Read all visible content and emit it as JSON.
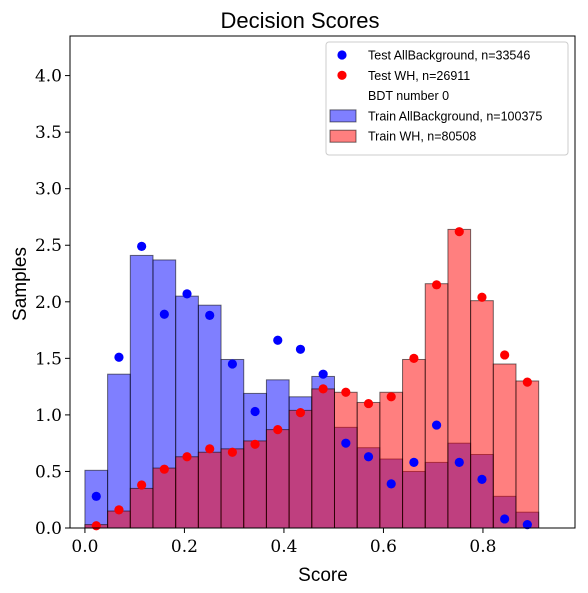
{
  "chart_data": {
    "type": "bar",
    "title": "Decision Scores",
    "xlabel": "Score",
    "ylabel": "Samples",
    "xlim": [
      -0.03,
      0.985
    ],
    "ylim": [
      0,
      4.35
    ],
    "xticks": [
      "0.0",
      "0.2",
      "0.4",
      "0.6",
      "0.8"
    ],
    "yticks": [
      "0.0",
      "0.5",
      "1.0",
      "1.5",
      "2.0",
      "2.5",
      "3.0",
      "3.5",
      "4.0"
    ],
    "bin_edges": [
      0.0,
      0.0456,
      0.0912,
      0.1368,
      0.1824,
      0.228,
      0.2736,
      0.3192,
      0.3648,
      0.4104,
      0.456,
      0.5016,
      0.5472,
      0.5928,
      0.6384,
      0.684,
      0.7296,
      0.7752,
      0.8208,
      0.8664,
      0.912
    ],
    "legend_position": "top-right",
    "series": [
      {
        "name": "Train AllBackground, n=100375",
        "kind": "histogram",
        "color": "#0000ff",
        "values": [
          0.51,
          1.36,
          2.41,
          2.37,
          2.05,
          1.97,
          1.49,
          1.19,
          1.31,
          1.16,
          1.34,
          0.89,
          0.71,
          0.61,
          0.5,
          0.58,
          0.75,
          0.65,
          0.28,
          0.14
        ]
      },
      {
        "name": "Train WH, n=80508",
        "kind": "histogram",
        "color": "#ff0000",
        "values": [
          0.03,
          0.15,
          0.35,
          0.53,
          0.63,
          0.67,
          0.7,
          0.77,
          0.87,
          1.04,
          1.23,
          1.2,
          1.11,
          1.2,
          1.49,
          2.16,
          2.64,
          2.01,
          1.45,
          1.3
        ]
      },
      {
        "name": "Test AllBackground, n=33546",
        "kind": "points",
        "color": "#0000ff",
        "values": [
          0.28,
          1.51,
          2.49,
          1.89,
          2.07,
          1.88,
          1.45,
          1.03,
          1.66,
          1.58,
          1.36,
          0.75,
          0.63,
          0.39,
          0.58,
          0.91,
          0.58,
          0.43,
          0.08,
          0.03
        ]
      },
      {
        "name": "Test WH, n=26911",
        "kind": "points",
        "color": "#ff0000",
        "values": [
          0.02,
          0.16,
          0.38,
          0.52,
          0.63,
          0.7,
          0.67,
          0.74,
          0.87,
          1.02,
          1.23,
          1.2,
          1.1,
          1.16,
          1.5,
          2.15,
          2.62,
          2.04,
          1.53,
          1.29
        ]
      }
    ],
    "legend_entries": [
      {
        "label": "Test AllBackground, n=33546",
        "marker": "dot",
        "color": "#0000ff"
      },
      {
        "label": "Test WH, n=26911",
        "marker": "dot",
        "color": "#ff0000"
      },
      {
        "label": "BDT number 0",
        "marker": "none",
        "color": ""
      },
      {
        "label": "Train AllBackground, n=100375",
        "marker": "patch",
        "color": "#0000ff"
      },
      {
        "label": "Train WH, n=80508",
        "marker": "patch",
        "color": "#ff0000"
      }
    ]
  }
}
